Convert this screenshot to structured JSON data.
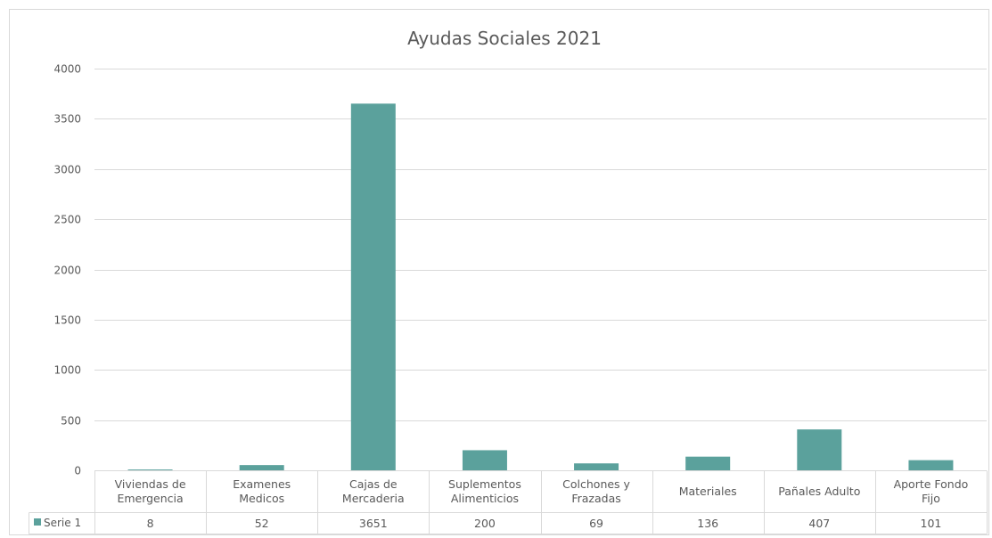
{
  "chart_data": {
    "type": "bar",
    "title": "Ayudas Sociales 2021",
    "categories": [
      [
        "Viviendas de",
        "Emergencia"
      ],
      [
        "Examenes",
        "Medicos"
      ],
      [
        "Cajas de",
        "Mercaderia"
      ],
      [
        "Suplementos",
        "Alimenticios"
      ],
      [
        "Colchones y",
        "Frazadas"
      ],
      [
        "Materiales"
      ],
      [
        "Pañales Adulto"
      ],
      [
        "Aporte Fondo",
        "Fijo"
      ]
    ],
    "series": [
      {
        "name": "Serie 1",
        "values": [
          8,
          52,
          3651,
          200,
          69,
          136,
          407,
          101
        ],
        "value_labels": [
          "8",
          "52",
          "3651",
          "200",
          "69",
          "136",
          "407",
          "101"
        ]
      }
    ],
    "yticks": [
      "0",
      "500",
      "1000",
      "1500",
      "2000",
      "2500",
      "3000",
      "3500",
      "4000"
    ],
    "ylim": [
      0,
      4000
    ],
    "grid": true,
    "data_table": true,
    "colors": {
      "bar": "#5BA19C",
      "grid": "#D9D9D9",
      "text": "#595959",
      "border": "#D9D9D9"
    }
  }
}
